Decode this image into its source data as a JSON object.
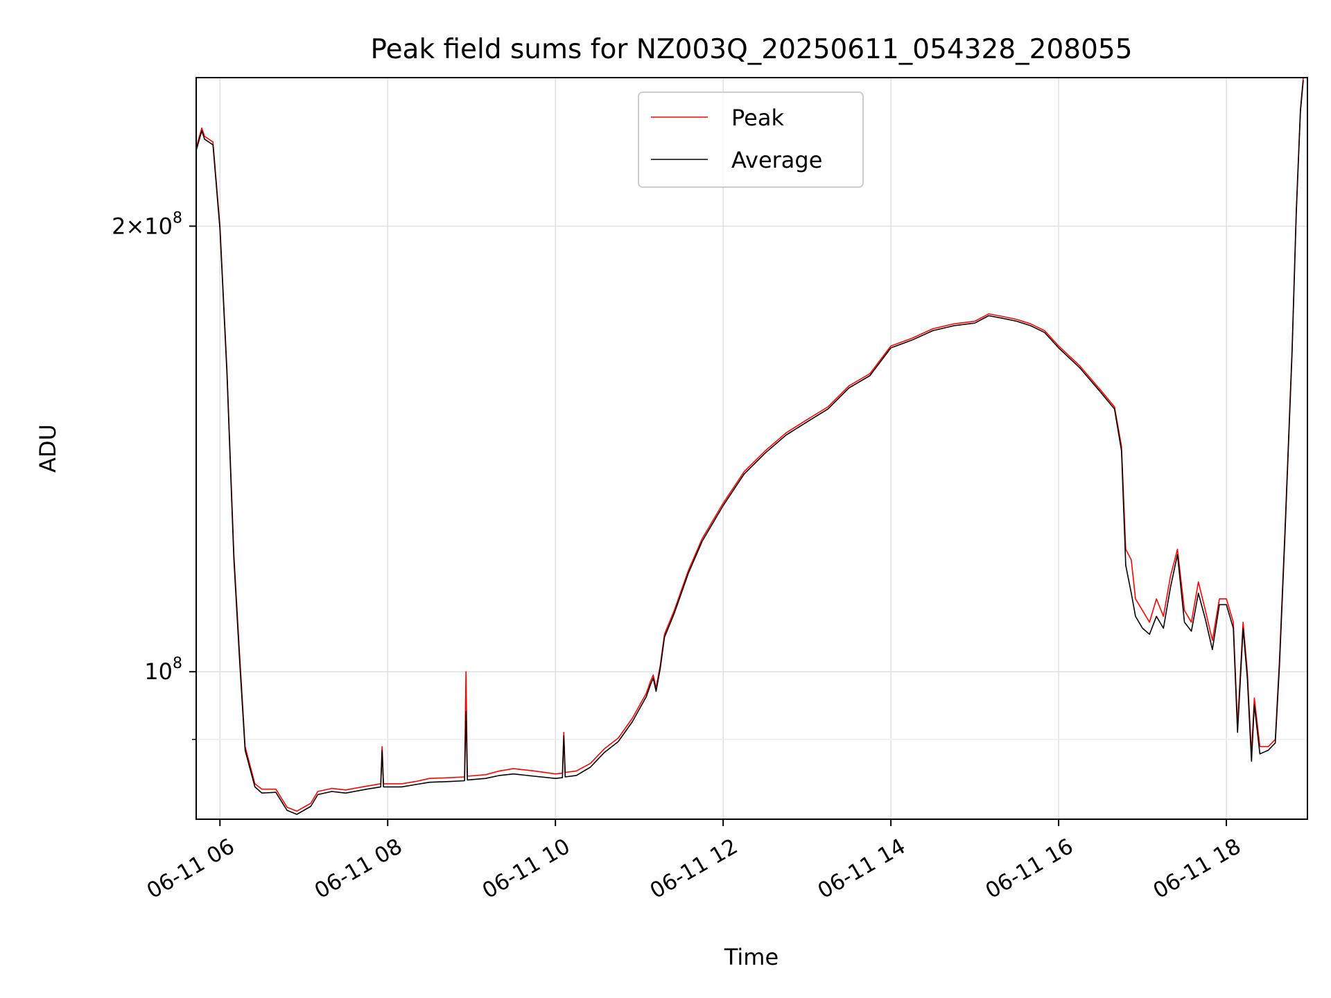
{
  "chart_data": {
    "type": "line",
    "title": "Peak field sums for NZ003Q_20250611_054328_208055",
    "xlabel": "Time",
    "ylabel": "ADU",
    "y_scale": "log",
    "ylim": [
      79500000,
      252000000
    ],
    "xlim": [
      "2025-06-11 05:43",
      "2025-06-11 18:58"
    ],
    "grid": true,
    "legend_position": "upper center",
    "x_ticks": [
      {
        "t": "2025-06-11 06:00",
        "label": "06-11 06"
      },
      {
        "t": "2025-06-11 08:00",
        "label": "06-11 08"
      },
      {
        "t": "2025-06-11 10:00",
        "label": "06-11 10"
      },
      {
        "t": "2025-06-11 12:00",
        "label": "06-11 12"
      },
      {
        "t": "2025-06-11 14:00",
        "label": "06-11 14"
      },
      {
        "t": "2025-06-11 16:00",
        "label": "06-11 16"
      },
      {
        "t": "2025-06-11 18:00",
        "label": "06-11 18"
      }
    ],
    "y_ticks": [
      {
        "v": 100000000,
        "label": "10^8"
      },
      {
        "v": 200000000,
        "label": "2×10^8"
      }
    ],
    "y_minor_ticks": [
      90000000
    ],
    "series": [
      {
        "name": "Peak",
        "color": "#ff0000",
        "points": [
          [
            "2025-06-11 05:43",
            226000000
          ],
          [
            "2025-06-11 05:47",
            233000000
          ],
          [
            "2025-06-11 05:49",
            230000000
          ],
          [
            "2025-06-11 05:55",
            228000000
          ],
          [
            "2025-06-11 06:00",
            200000000
          ],
          [
            "2025-06-11 06:05",
            160000000
          ],
          [
            "2025-06-11 06:10",
            120000000
          ],
          [
            "2025-06-11 06:14",
            103000000
          ],
          [
            "2025-06-11 06:18",
            89000000
          ],
          [
            "2025-06-11 06:25",
            84000000
          ],
          [
            "2025-06-11 06:30",
            83300000
          ],
          [
            "2025-06-11 06:40",
            83300000
          ],
          [
            "2025-06-11 06:48",
            81000000
          ],
          [
            "2025-06-11 06:55",
            80500000
          ],
          [
            "2025-06-11 07:05",
            81500000
          ],
          [
            "2025-06-11 07:10",
            83000000
          ],
          [
            "2025-06-11 07:20",
            83400000
          ],
          [
            "2025-06-11 07:30",
            83200000
          ],
          [
            "2025-06-11 07:45",
            83700000
          ],
          [
            "2025-06-11 07:55",
            84000000
          ],
          [
            "2025-06-11 07:56",
            89000000
          ],
          [
            "2025-06-11 07:57",
            84000000
          ],
          [
            "2025-06-11 08:10",
            84000000
          ],
          [
            "2025-06-11 08:20",
            84300000
          ],
          [
            "2025-06-11 08:30",
            84700000
          ],
          [
            "2025-06-11 08:45",
            84800000
          ],
          [
            "2025-06-11 08:55",
            84900000
          ],
          [
            "2025-06-11 08:56",
            100000000
          ],
          [
            "2025-06-11 08:57",
            85000000
          ],
          [
            "2025-06-11 09:10",
            85200000
          ],
          [
            "2025-06-11 09:20",
            85700000
          ],
          [
            "2025-06-11 09:30",
            86000000
          ],
          [
            "2025-06-11 09:45",
            85700000
          ],
          [
            "2025-06-11 10:00",
            85300000
          ],
          [
            "2025-06-11 10:05",
            85400000
          ],
          [
            "2025-06-11 10:06",
            91000000
          ],
          [
            "2025-06-11 10:07",
            85500000
          ],
          [
            "2025-06-11 10:15",
            85700000
          ],
          [
            "2025-06-11 10:25",
            86700000
          ],
          [
            "2025-06-11 10:35",
            88700000
          ],
          [
            "2025-06-11 10:45",
            90200000
          ],
          [
            "2025-06-11 10:55",
            93000000
          ],
          [
            "2025-06-11 11:05",
            96700000
          ],
          [
            "2025-06-11 11:08",
            98500000
          ],
          [
            "2025-06-11 11:10",
            99500000
          ],
          [
            "2025-06-11 11:12",
            97500000
          ],
          [
            "2025-06-11 11:15",
            101000000
          ],
          [
            "2025-06-11 11:18",
            106000000
          ],
          [
            "2025-06-11 11:25",
            110000000
          ],
          [
            "2025-06-11 11:35",
            117000000
          ],
          [
            "2025-06-11 11:45",
            123000000
          ],
          [
            "2025-06-11 12:00",
            130000000
          ],
          [
            "2025-06-11 12:15",
            136500000
          ],
          [
            "2025-06-11 12:30",
            141000000
          ],
          [
            "2025-06-11 12:45",
            145000000
          ],
          [
            "2025-06-11 13:00",
            148000000
          ],
          [
            "2025-06-11 13:15",
            151000000
          ],
          [
            "2025-06-11 13:30",
            156000000
          ],
          [
            "2025-06-11 13:45",
            159000000
          ],
          [
            "2025-06-11 14:00",
            166000000
          ],
          [
            "2025-06-11 14:15",
            168000000
          ],
          [
            "2025-06-11 14:30",
            170500000
          ],
          [
            "2025-06-11 14:45",
            171800000
          ],
          [
            "2025-06-11 15:00",
            172500000
          ],
          [
            "2025-06-11 15:10",
            174500000
          ],
          [
            "2025-06-11 15:20",
            173800000
          ],
          [
            "2025-06-11 15:30",
            173000000
          ],
          [
            "2025-06-11 15:40",
            171800000
          ],
          [
            "2025-06-11 15:50",
            170000000
          ],
          [
            "2025-06-11 16:00",
            166000000
          ],
          [
            "2025-06-11 16:15",
            161000000
          ],
          [
            "2025-06-11 16:30",
            155000000
          ],
          [
            "2025-06-11 16:40",
            151000000
          ],
          [
            "2025-06-11 16:45",
            142000000
          ],
          [
            "2025-06-11 16:48",
            121000000
          ],
          [
            "2025-06-11 16:52",
            119000000
          ],
          [
            "2025-06-11 16:55",
            112000000
          ],
          [
            "2025-06-11 17:00",
            110000000
          ],
          [
            "2025-06-11 17:05",
            108000000
          ],
          [
            "2025-06-11 17:10",
            112000000
          ],
          [
            "2025-06-11 17:15",
            109000000
          ],
          [
            "2025-06-11 17:20",
            116000000
          ],
          [
            "2025-06-11 17:25",
            121000000
          ],
          [
            "2025-06-11 17:30",
            110000000
          ],
          [
            "2025-06-11 17:35",
            108000000
          ],
          [
            "2025-06-11 17:40",
            115000000
          ],
          [
            "2025-06-11 17:45",
            110000000
          ],
          [
            "2025-06-11 17:50",
            105000000
          ],
          [
            "2025-06-11 17:55",
            112000000
          ],
          [
            "2025-06-11 18:00",
            112000000
          ],
          [
            "2025-06-11 18:05",
            108000000
          ],
          [
            "2025-06-11 18:08",
            92000000
          ],
          [
            "2025-06-11 18:12",
            108000000
          ],
          [
            "2025-06-11 18:15",
            100000000
          ],
          [
            "2025-06-11 18:18",
            88000000
          ],
          [
            "2025-06-11 18:20",
            96000000
          ],
          [
            "2025-06-11 18:24",
            89000000
          ],
          [
            "2025-06-11 18:30",
            89000000
          ],
          [
            "2025-06-11 18:35",
            90000000
          ],
          [
            "2025-06-11 18:38",
            102000000
          ],
          [
            "2025-06-11 18:42",
            125000000
          ],
          [
            "2025-06-11 18:47",
            165000000
          ],
          [
            "2025-06-11 18:50",
            205000000
          ],
          [
            "2025-06-11 18:53",
            240000000
          ],
          [
            "2025-06-11 18:55",
            252000000
          ]
        ]
      },
      {
        "name": "Average",
        "color": "#000000",
        "points": [
          [
            "2025-06-11 05:43",
            225000000
          ],
          [
            "2025-06-11 05:47",
            232000000
          ],
          [
            "2025-06-11 05:49",
            229000000
          ],
          [
            "2025-06-11 05:55",
            227000000
          ],
          [
            "2025-06-11 06:00",
            199000000
          ],
          [
            "2025-06-11 06:05",
            159000000
          ],
          [
            "2025-06-11 06:10",
            119000000
          ],
          [
            "2025-06-11 06:14",
            102000000
          ],
          [
            "2025-06-11 06:18",
            88500000
          ],
          [
            "2025-06-11 06:25",
            83600000
          ],
          [
            "2025-06-11 06:30",
            82800000
          ],
          [
            "2025-06-11 06:40",
            82900000
          ],
          [
            "2025-06-11 06:48",
            80600000
          ],
          [
            "2025-06-11 06:55",
            80100000
          ],
          [
            "2025-06-11 07:05",
            81100000
          ],
          [
            "2025-06-11 07:10",
            82600000
          ],
          [
            "2025-06-11 07:20",
            83000000
          ],
          [
            "2025-06-11 07:30",
            82800000
          ],
          [
            "2025-06-11 07:45",
            83300000
          ],
          [
            "2025-06-11 07:55",
            83600000
          ],
          [
            "2025-06-11 07:56",
            88500000
          ],
          [
            "2025-06-11 07:57",
            83600000
          ],
          [
            "2025-06-11 08:10",
            83600000
          ],
          [
            "2025-06-11 08:20",
            83900000
          ],
          [
            "2025-06-11 08:30",
            84200000
          ],
          [
            "2025-06-11 08:45",
            84300000
          ],
          [
            "2025-06-11 08:55",
            84400000
          ],
          [
            "2025-06-11 08:56",
            94000000
          ],
          [
            "2025-06-11 08:57",
            84500000
          ],
          [
            "2025-06-11 09:10",
            84700000
          ],
          [
            "2025-06-11 09:20",
            85100000
          ],
          [
            "2025-06-11 09:30",
            85300000
          ],
          [
            "2025-06-11 09:45",
            85000000
          ],
          [
            "2025-06-11 10:00",
            84700000
          ],
          [
            "2025-06-11 10:05",
            84800000
          ],
          [
            "2025-06-11 10:06",
            90500000
          ],
          [
            "2025-06-11 10:07",
            84900000
          ],
          [
            "2025-06-11 10:15",
            85100000
          ],
          [
            "2025-06-11 10:25",
            86200000
          ],
          [
            "2025-06-11 10:35",
            88200000
          ],
          [
            "2025-06-11 10:45",
            89700000
          ],
          [
            "2025-06-11 10:55",
            92500000
          ],
          [
            "2025-06-11 11:05",
            96200000
          ],
          [
            "2025-06-11 11:08",
            98000000
          ],
          [
            "2025-06-11 11:10",
            99000000
          ],
          [
            "2025-06-11 11:12",
            97000000
          ],
          [
            "2025-06-11 11:15",
            100500000
          ],
          [
            "2025-06-11 11:18",
            105500000
          ],
          [
            "2025-06-11 11:25",
            109500000
          ],
          [
            "2025-06-11 11:35",
            116500000
          ],
          [
            "2025-06-11 11:45",
            122500000
          ],
          [
            "2025-06-11 12:00",
            129500000
          ],
          [
            "2025-06-11 12:15",
            136000000
          ],
          [
            "2025-06-11 12:30",
            140500000
          ],
          [
            "2025-06-11 12:45",
            144500000
          ],
          [
            "2025-06-11 13:00",
            147500000
          ],
          [
            "2025-06-11 13:15",
            150500000
          ],
          [
            "2025-06-11 13:30",
            155500000
          ],
          [
            "2025-06-11 13:45",
            158500000
          ],
          [
            "2025-06-11 14:00",
            165500000
          ],
          [
            "2025-06-11 14:15",
            167500000
          ],
          [
            "2025-06-11 14:30",
            170000000
          ],
          [
            "2025-06-11 14:45",
            171300000
          ],
          [
            "2025-06-11 15:00",
            172000000
          ],
          [
            "2025-06-11 15:10",
            174000000
          ],
          [
            "2025-06-11 15:20",
            173300000
          ],
          [
            "2025-06-11 15:30",
            172500000
          ],
          [
            "2025-06-11 15:40",
            171300000
          ],
          [
            "2025-06-11 15:50",
            169500000
          ],
          [
            "2025-06-11 16:00",
            165500000
          ],
          [
            "2025-06-11 16:15",
            160500000
          ],
          [
            "2025-06-11 16:30",
            154500000
          ],
          [
            "2025-06-11 16:40",
            150500000
          ],
          [
            "2025-06-11 16:45",
            141000000
          ],
          [
            "2025-06-11 16:48",
            118000000
          ],
          [
            "2025-06-11 16:52",
            113000000
          ],
          [
            "2025-06-11 16:55",
            109000000
          ],
          [
            "2025-06-11 17:00",
            107000000
          ],
          [
            "2025-06-11 17:05",
            106000000
          ],
          [
            "2025-06-11 17:10",
            109000000
          ],
          [
            "2025-06-11 17:15",
            107000000
          ],
          [
            "2025-06-11 17:20",
            114000000
          ],
          [
            "2025-06-11 17:25",
            120000000
          ],
          [
            "2025-06-11 17:30",
            108000000
          ],
          [
            "2025-06-11 17:35",
            106500000
          ],
          [
            "2025-06-11 17:40",
            113000000
          ],
          [
            "2025-06-11 17:45",
            108500000
          ],
          [
            "2025-06-11 17:50",
            103500000
          ],
          [
            "2025-06-11 17:55",
            111000000
          ],
          [
            "2025-06-11 18:00",
            111000000
          ],
          [
            "2025-06-11 18:05",
            107000000
          ],
          [
            "2025-06-11 18:08",
            91000000
          ],
          [
            "2025-06-11 18:12",
            107000000
          ],
          [
            "2025-06-11 18:15",
            99000000
          ],
          [
            "2025-06-11 18:18",
            87000000
          ],
          [
            "2025-06-11 18:20",
            95000000
          ],
          [
            "2025-06-11 18:24",
            88000000
          ],
          [
            "2025-06-11 18:30",
            88500000
          ],
          [
            "2025-06-11 18:35",
            89500000
          ],
          [
            "2025-06-11 18:38",
            101000000
          ],
          [
            "2025-06-11 18:42",
            124000000
          ],
          [
            "2025-06-11 18:47",
            164000000
          ],
          [
            "2025-06-11 18:50",
            204000000
          ],
          [
            "2025-06-11 18:53",
            239000000
          ],
          [
            "2025-06-11 18:55",
            251000000
          ]
        ]
      }
    ]
  }
}
